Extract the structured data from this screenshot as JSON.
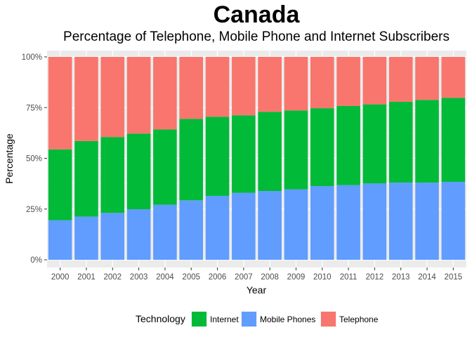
{
  "chart_data": {
    "type": "bar",
    "stacked": true,
    "title": "Canada",
    "subtitle": "Percentage of Telephone, Mobile Phone and Internet Subscribers",
    "xlabel": "Year",
    "ylabel": "Percentage",
    "ylim": [
      0,
      1
    ],
    "y_ticks": [
      0,
      0.25,
      0.5,
      0.75,
      1
    ],
    "y_tick_labels": [
      "0%",
      "25%",
      "50%",
      "75%",
      "100%"
    ],
    "grid": true,
    "legend_placement": "bottom",
    "legend_title": "Technology",
    "categories": [
      "2000",
      "2001",
      "2002",
      "2003",
      "2004",
      "2005",
      "2006",
      "2007",
      "2008",
      "2009",
      "2010",
      "2011",
      "2012",
      "2013",
      "2014",
      "2015"
    ],
    "series": [
      {
        "name": "Mobile Phones",
        "color": "#619CFF",
        "values": [
          0.195,
          0.213,
          0.231,
          0.249,
          0.271,
          0.293,
          0.315,
          0.33,
          0.339,
          0.347,
          0.363,
          0.368,
          0.376,
          0.38,
          0.38,
          0.384
        ]
      },
      {
        "name": "Internet",
        "color": "#00BA38",
        "values": [
          0.349,
          0.372,
          0.374,
          0.373,
          0.371,
          0.401,
          0.39,
          0.382,
          0.39,
          0.389,
          0.384,
          0.39,
          0.39,
          0.399,
          0.408,
          0.414
        ]
      },
      {
        "name": "Telephone",
        "color": "#F8766D",
        "values": [
          0.456,
          0.415,
          0.395,
          0.378,
          0.358,
          0.306,
          0.295,
          0.288,
          0.271,
          0.264,
          0.253,
          0.242,
          0.234,
          0.221,
          0.212,
          0.202
        ]
      }
    ],
    "legend_order": [
      "Internet",
      "Mobile Phones",
      "Telephone"
    ]
  },
  "colors": {
    "panel_background": "#EBEBEB",
    "grid_major": "#FFFFFF",
    "tick_text": "#4D4D4D"
  }
}
